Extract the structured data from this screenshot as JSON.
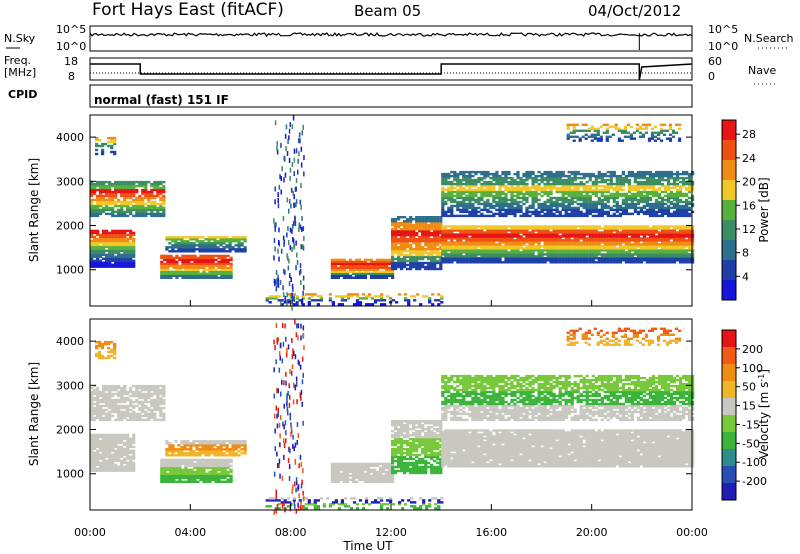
{
  "header": {
    "radar": "Fort Hays East (fitACF)",
    "beam": "Beam 05",
    "date": "04/Oct/2012"
  },
  "strip1": {
    "left_label": "N.Sky",
    "right_label": "N.Search",
    "left_ticks": [
      "10^5",
      "10^0"
    ],
    "right_ticks": [
      "10^5",
      "10^0"
    ]
  },
  "strip2": {
    "left_label_1": "Freq.",
    "left_label_2": "[MHz]",
    "right_label": "Nave",
    "left_ticks": [
      "18",
      "8"
    ],
    "right_ticks": [
      "60",
      "0"
    ],
    "cpid_label": "CPID",
    "cpid_text": "normal (fast) 151 IF"
  },
  "colors": {
    "power_scale": [
      "#1515dc",
      "#1e3fa8",
      "#2d6e8c",
      "#3c8c64",
      "#58b03c",
      "#f0c828",
      "#f08c14",
      "#f05014",
      "#e61414"
    ],
    "velocity_scale": [
      "#1e1eb4",
      "#2850b4",
      "#2d8c8c",
      "#3cb43c",
      "#78c83c",
      "#c8c8c0",
      "#f0b428",
      "#f08c14",
      "#f05a14",
      "#e61414"
    ],
    "ground_scatter": "#c8c8c0"
  },
  "chart_data": [
    {
      "type": "heatmap",
      "title": "Power",
      "xlabel": "Time UT",
      "ylabel": "Slant Range [km]",
      "x_ticks": [
        "00:00",
        "04:00",
        "08:00",
        "12:00",
        "16:00",
        "20:00",
        "00:00"
      ],
      "y_ticks": [
        "1000",
        "2000",
        "3000",
        "4000"
      ],
      "xlim": [
        0,
        24
      ],
      "ylim": [
        180,
        4500
      ],
      "colorbar_label": "Power [dB]",
      "colorbar_ticks": [
        "4",
        "8",
        "12",
        "16",
        "20",
        "24",
        "28"
      ],
      "colorbar_range": [
        0,
        30
      ]
    },
    {
      "type": "heatmap",
      "title": "Velocity",
      "xlabel": "Time UT",
      "ylabel": "Slant Range [km]",
      "x_ticks": [
        "00:00",
        "04:00",
        "08:00",
        "12:00",
        "16:00",
        "20:00",
        "00:00"
      ],
      "y_ticks": [
        "1000",
        "2000",
        "3000",
        "4000"
      ],
      "xlim": [
        0,
        24
      ],
      "ylim": [
        180,
        4500
      ],
      "colorbar_label_main": "Velocity [m s",
      "colorbar_label_exp": "-1",
      "colorbar_label_end": "]",
      "colorbar_ticks": [
        "200",
        "100",
        "50",
        "15",
        "-15",
        "-50",
        "-100",
        "-200"
      ],
      "colorbar_range": [
        -250,
        250
      ]
    }
  ]
}
